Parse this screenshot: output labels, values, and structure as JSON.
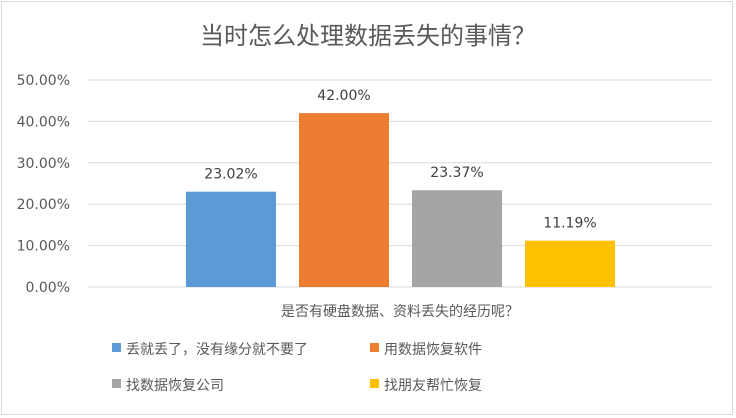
{
  "chart_data": {
    "type": "bar",
    "title": "当时怎么处理数据丢失的事情？",
    "category": "是否有硬盘数据、资料丢失的经历呢？",
    "ylim": [
      0,
      50
    ],
    "yticks": [
      "0.00%",
      "10.00%",
      "20.00%",
      "30.00%",
      "40.00%",
      "50.00%"
    ],
    "grid": true,
    "legend_position": "bottom",
    "series": [
      {
        "name": "丢就丢了，没有缘分就不要了",
        "value": 23.02,
        "label": "23.02%",
        "color": "#5B9BD5"
      },
      {
        "name": "用数据恢复软件",
        "value": 42.0,
        "label": "42.00%",
        "color": "#ED7D31"
      },
      {
        "name": "找数据恢复公司",
        "value": 23.37,
        "label": "23.37%",
        "color": "#A5A5A5"
      },
      {
        "name": "找朋友帮忙恢复",
        "value": 11.19,
        "label": "11.19%",
        "color": "#FFC000"
      }
    ]
  }
}
